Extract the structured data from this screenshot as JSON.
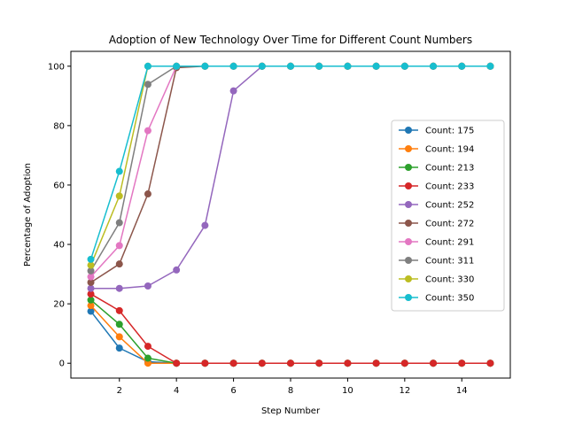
{
  "chart_data": {
    "type": "line",
    "title": "Adoption of New Technology Over Time for Different Count Numbers",
    "xlabel": "Step Number",
    "ylabel": "Percentage of Adoption",
    "x": [
      1,
      2,
      3,
      4,
      5,
      6,
      7,
      8,
      9,
      10,
      11,
      12,
      13,
      14,
      15
    ],
    "xlim": [
      0.3,
      15.7
    ],
    "ylim": [
      -5,
      105
    ],
    "xticks": [
      2,
      4,
      6,
      8,
      10,
      12,
      14
    ],
    "yticks": [
      0,
      20,
      40,
      60,
      80,
      100
    ],
    "grid": false,
    "legend_position": "center-right",
    "series": [
      {
        "name": "Count: 175",
        "color": "#1f77b4",
        "values": [
          17.5,
          5.1,
          0.5,
          0,
          0,
          0,
          0,
          0,
          0,
          0,
          0,
          0,
          0,
          0,
          0
        ]
      },
      {
        "name": "Count: 194",
        "color": "#ff7f0e",
        "values": [
          19.4,
          8.9,
          0,
          0,
          0,
          0,
          0,
          0,
          0,
          0,
          0,
          0,
          0,
          0,
          0
        ]
      },
      {
        "name": "Count: 213",
        "color": "#2ca02c",
        "values": [
          21.3,
          13.1,
          1.7,
          0,
          0,
          0,
          0,
          0,
          0,
          0,
          0,
          0,
          0,
          0,
          0
        ]
      },
      {
        "name": "Count: 233",
        "color": "#d62728",
        "values": [
          23.3,
          17.7,
          5.7,
          0,
          0,
          0,
          0,
          0,
          0,
          0,
          0,
          0,
          0,
          0,
          0
        ]
      },
      {
        "name": "Count: 252",
        "color": "#9467bd",
        "values": [
          25.2,
          25.2,
          26.0,
          31.4,
          46.4,
          91.7,
          100,
          100,
          100,
          100,
          100,
          100,
          100,
          100,
          100
        ]
      },
      {
        "name": "Count: 272",
        "color": "#8c564b",
        "values": [
          27.2,
          33.4,
          57.0,
          99.5,
          100,
          100,
          100,
          100,
          100,
          100,
          100,
          100,
          100,
          100,
          100
        ]
      },
      {
        "name": "Count: 291",
        "color": "#e377c2",
        "values": [
          29.1,
          39.6,
          78.3,
          100,
          100,
          100,
          100,
          100,
          100,
          100,
          100,
          100,
          100,
          100,
          100
        ]
      },
      {
        "name": "Count: 311",
        "color": "#7f7f7f",
        "values": [
          31.1,
          47.3,
          93.9,
          100,
          100,
          100,
          100,
          100,
          100,
          100,
          100,
          100,
          100,
          100,
          100
        ]
      },
      {
        "name": "Count: 330",
        "color": "#bcbd22",
        "values": [
          33.0,
          56.3,
          100,
          100,
          100,
          100,
          100,
          100,
          100,
          100,
          100,
          100,
          100,
          100,
          100
        ]
      },
      {
        "name": "Count: 350",
        "color": "#17becf",
        "values": [
          35.0,
          64.6,
          100,
          100,
          100,
          100,
          100,
          100,
          100,
          100,
          100,
          100,
          100,
          100,
          100
        ]
      }
    ]
  }
}
